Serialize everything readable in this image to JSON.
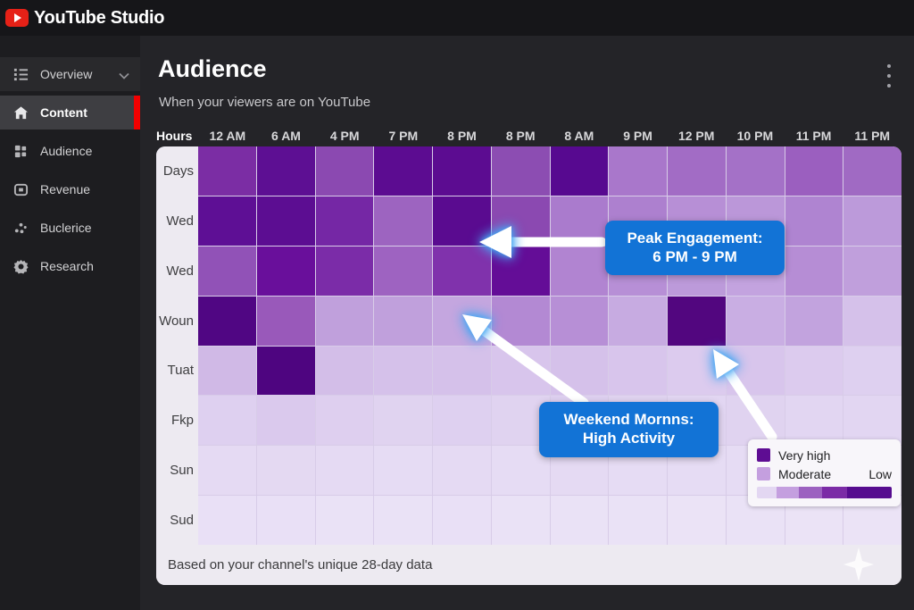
{
  "topbar": {
    "brand": "YouTube Studio"
  },
  "sidebar": {
    "items": [
      {
        "id": "overview",
        "label": "Overview",
        "icon": "list-icon",
        "chevron": true,
        "active": false,
        "highlight": true
      },
      {
        "id": "content",
        "label": "Content",
        "icon": "home-icon",
        "chevron": false,
        "active": true,
        "highlight": false
      },
      {
        "id": "audience",
        "label": "Audience",
        "icon": "grid-icon",
        "chevron": false,
        "active": false,
        "highlight": false
      },
      {
        "id": "revenue",
        "label": "Revenue",
        "icon": "revenue-icon",
        "chevron": false,
        "active": false,
        "highlight": false
      },
      {
        "id": "buclerice",
        "label": "Buclerice",
        "icon": "scatter-icon",
        "chevron": false,
        "active": false,
        "highlight": false
      },
      {
        "id": "research",
        "label": "Research",
        "icon": "gear-icon",
        "chevron": false,
        "active": false,
        "highlight": false
      }
    ]
  },
  "header": {
    "title": "Audience",
    "subtitle": "When your viewers are on YouTube"
  },
  "chart_data": {
    "type": "heatmap",
    "title": "When your viewers are on YouTube",
    "corner_label": "Hours",
    "columns": [
      "12 AM",
      "6 AM",
      "4 PM",
      "7 PM",
      "8 PM",
      "8 PM",
      "8 AM",
      "9 PM",
      "12 PM",
      "10 PM",
      "11 PM",
      "11 PM"
    ],
    "rows": [
      "Days",
      "Wed",
      "Wed",
      "Woun",
      "Tuat",
      "Fkp",
      "Sun",
      "Sud"
    ],
    "cell_colors": [
      [
        "#7B2DA4",
        "#5D0F93",
        "#8B49B1",
        "#5C0C91",
        "#5C0C91",
        "#8C4DB2",
        "#570990",
        "#A977CB",
        "#A26CC5",
        "#A471C7",
        "#9B5FBF",
        "#A06AC3"
      ],
      [
        "#5E0F95",
        "#5C0D92",
        "#7527A5",
        "#9D64C0",
        "#5A0B90",
        "#8B49B1",
        "#AA7BCD",
        "#AD80CF",
        "#B78FD6",
        "#BB97D9",
        "#AF84D1",
        "#BC9ADA"
      ],
      [
        "#9152B7",
        "#690F9B",
        "#7B2CA8",
        "#9E63C1",
        "#8032AC",
        "#640D97",
        "#B184D1",
        "#B78FD6",
        "#BC9ADA",
        "#C3A3DF",
        "#B68DD5",
        "#C09FDC"
      ],
      [
        "#500683",
        "#9959BA",
        "#C0A0DC",
        "#C0A0DC",
        "#C4A6DF",
        "#B389D3",
        "#B78FD6",
        "#C7ABE1",
        "#52067F",
        "#C9AEE3",
        "#C2A3DE",
        "#D5C1EA"
      ],
      [
        "#D0B9E6",
        "#4E0580",
        "#D3BEE8",
        "#D5C1EA",
        "#D5C1EA",
        "#D8C5EC",
        "#D5C1EA",
        "#D8C5EC",
        "#DCCBEE",
        "#D8C5EC",
        "#DCCBEE",
        "#DED0F0"
      ],
      [
        "#DED0F0",
        "#DAC9ED",
        "#DECFEF",
        "#E0D3F0",
        "#DED0F0",
        "#E0D3F0",
        "#DED0F0",
        "#E0D3F0",
        "#E2D6F2",
        "#E0D3F0",
        "#E2D6F2",
        "#E2D6F2"
      ],
      [
        "#E5DAF3",
        "#E4D9F2",
        "#E5DAF3",
        "#E6DCF4",
        "#E5DAF3",
        "#E6DCF4",
        "#E5DAF3",
        "#E6DCF4",
        "#E6DCF4",
        "#E6DCF4",
        "#E7DEF4",
        "#E7DEF4"
      ],
      [
        "#E9E0F6",
        "#E9E0F6",
        "#EAE2F6",
        "#EAE2F6",
        "#E9E0F6",
        "#EAE2F6",
        "#EAE2F6",
        "#EAE2F6",
        "#EBE3F6",
        "#EAE2F6",
        "#EBE3F6",
        "#EBE3F6"
      ]
    ],
    "legend": {
      "very_high_label": "Very high",
      "moderate_label": "Moderate",
      "low_label": "Low",
      "very_high_color": "#5E0D93",
      "moderate_color": "#C49FDF",
      "scale_colors": [
        "#E3D7F2",
        "#C49FDF",
        "#9C61C0",
        "#7B2BA6",
        "#560C8F"
      ],
      "scale_weights": [
        1,
        1.2,
        1.2,
        1.3,
        2.3
      ]
    },
    "footnote": "Based on your channel's unique 28-day data"
  },
  "annotations": {
    "callout_peak": {
      "line1": "Peak Engagement:",
      "line2": "6 PM - 9 PM",
      "bg": "#1273D6"
    },
    "callout_weekend": {
      "line1": "Weekend Mornns:",
      "line2": "High Activity",
      "bg": "#1273D6"
    },
    "arrow_color": "#FFFFFF",
    "glow_color": "#45A6F2"
  },
  "colors": {
    "accent_red": "#F20000",
    "card_bg": "#EDEAF1",
    "topbar_bg": "#161619"
  }
}
